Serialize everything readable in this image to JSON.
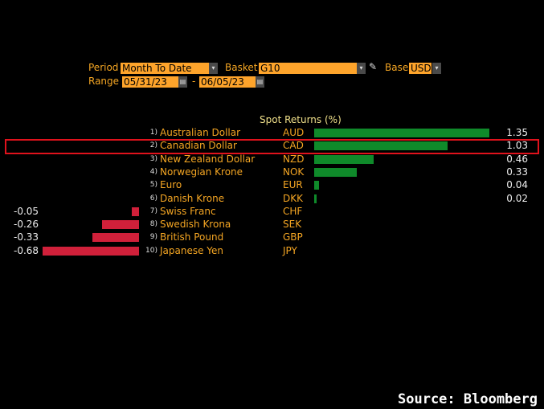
{
  "controls": {
    "period_label": "Period",
    "period_value": "Month To Date",
    "basket_label": "Basket",
    "basket_value": "G10",
    "base_label": "Base",
    "base_value": "USD",
    "range_label": "Range",
    "range_start": "05/31/23",
    "range_sep": "-",
    "range_end": "06/05/23"
  },
  "chart_data": {
    "type": "bar",
    "title": "Spot Returns (%)",
    "orientation": "horizontal",
    "rows": [
      {
        "rank": "1)",
        "name": "Australian Dollar",
        "code": "AUD",
        "value": 1.35
      },
      {
        "rank": "2)",
        "name": "Canadian Dollar",
        "code": "CAD",
        "value": 1.03
      },
      {
        "rank": "3)",
        "name": "New Zealand Dollar",
        "code": "NZD",
        "value": 0.46
      },
      {
        "rank": "4)",
        "name": "Norwegian Krone",
        "code": "NOK",
        "value": 0.33
      },
      {
        "rank": "5)",
        "name": "Euro",
        "code": "EUR",
        "value": 0.04
      },
      {
        "rank": "6)",
        "name": "Danish Krone",
        "code": "DKK",
        "value": 0.02
      },
      {
        "rank": "7)",
        "name": "Swiss Franc",
        "code": "CHF",
        "value": -0.05
      },
      {
        "rank": "8)",
        "name": "Swedish Krona",
        "code": "SEK",
        "value": -0.26
      },
      {
        "rank": "9)",
        "name": "British Pound",
        "code": "GBP",
        "value": -0.33
      },
      {
        "rank": "10)",
        "name": "Japanese Yen",
        "code": "JPY",
        "value": -0.68
      }
    ],
    "highlighted": "CAD",
    "colors": {
      "positive": "#0f8a2a",
      "negative": "#d0203a",
      "highlight": "#e0121c"
    }
  },
  "source": "Source: Bloomberg"
}
